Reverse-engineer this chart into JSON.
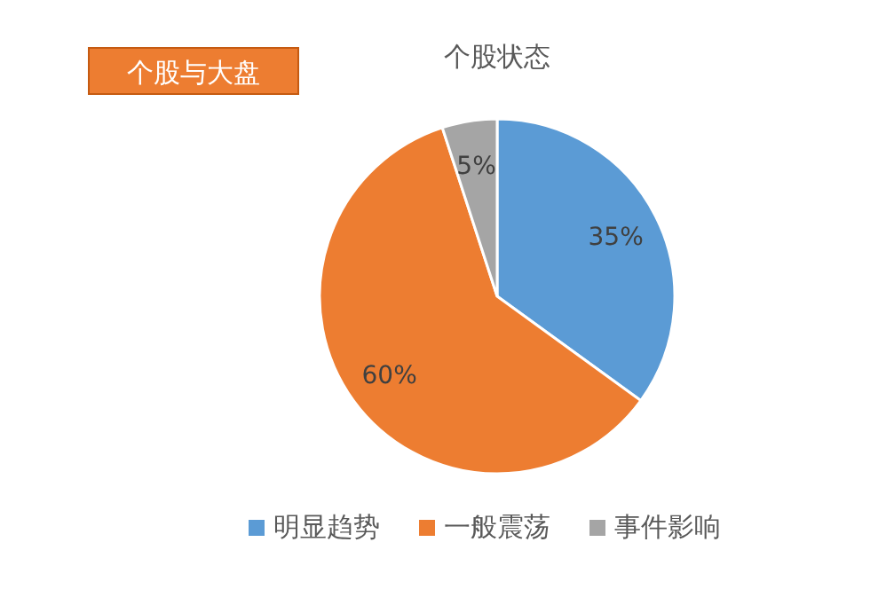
{
  "chart_data": {
    "type": "pie",
    "title": "个股状态",
    "subtitle": "个股与大盘",
    "categories": [
      "明显趋势",
      "一般震荡",
      "事件影响"
    ],
    "values": [
      35,
      60,
      5
    ],
    "colors": [
      "#5b9bd5",
      "#ed7d31",
      "#a5a5a5"
    ],
    "value_labels": [
      "35%",
      "60%",
      "5%"
    ],
    "legend": "bottom"
  }
}
